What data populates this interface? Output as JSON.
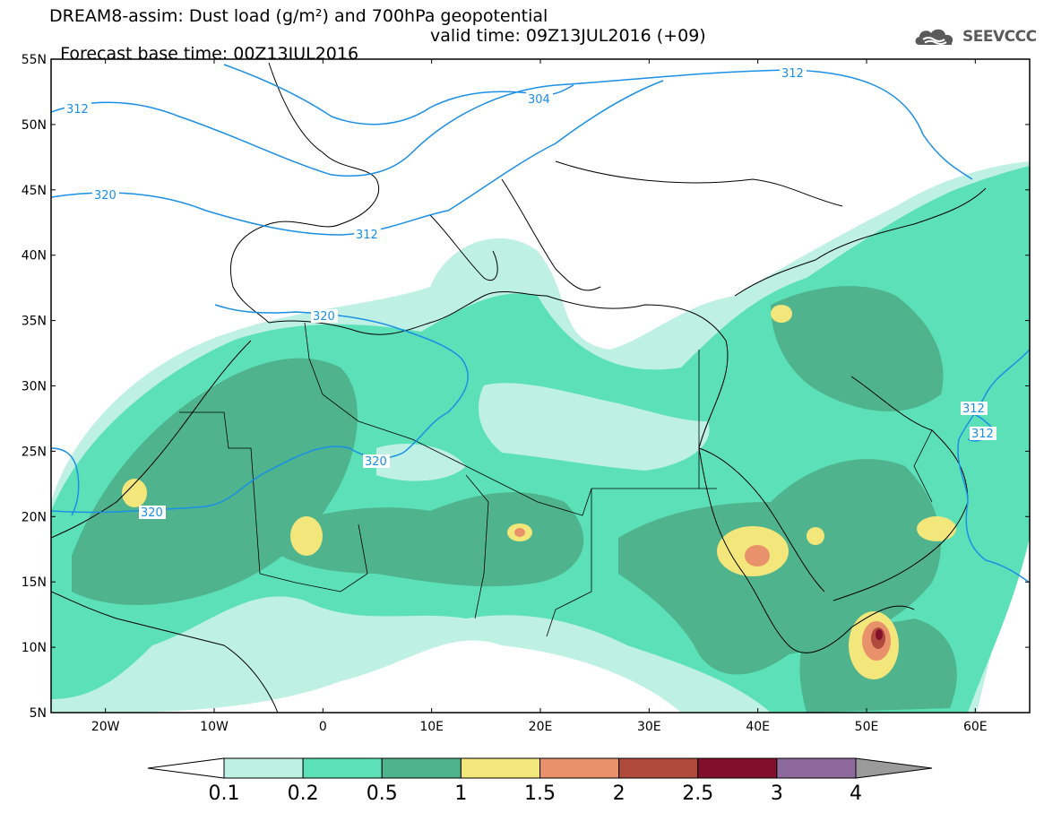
{
  "title": {
    "line1": "DREAM8-assim: Dust load (g/m²) and 700hPa geopotential",
    "line2_base": "Forecast base time: 00Z13JUL2016",
    "line2_valid": "valid time: 09Z13JUL2016 (+09)"
  },
  "logo": {
    "text": "SEEVCCC",
    "icon": "cloud-icon"
  },
  "axes": {
    "lat_labels": [
      "55N",
      "50N",
      "45N",
      "40N",
      "35N",
      "30N",
      "25N",
      "20N",
      "15N",
      "10N",
      "5N"
    ],
    "lon_labels": [
      "20W",
      "10W",
      "0",
      "10E",
      "20E",
      "30E",
      "40E",
      "50E",
      "60E"
    ],
    "lat_range": [
      5,
      55
    ],
    "lon_range": [
      -25,
      65
    ]
  },
  "contours": {
    "unit": "700hPa geopotential (dam)",
    "labels": [
      "312",
      "304",
      "312",
      "320",
      "312",
      "320",
      "320",
      "320",
      "312",
      "312"
    ]
  },
  "colorbar": {
    "labels": [
      "0.1",
      "0.2",
      "0.5",
      "1",
      "1.5",
      "2",
      "2.5",
      "3",
      "4"
    ],
    "colors": [
      "#ffffff",
      "#bff0e4",
      "#5ce0b8",
      "#4fb38d",
      "#f3e67a",
      "#e8916a",
      "#b04a3c",
      "#820f2b",
      "#8e6a9c",
      "#9b9b9b"
    ]
  },
  "colors": {
    "land_line": "#000000",
    "contour_line": "#1a8fe6"
  }
}
